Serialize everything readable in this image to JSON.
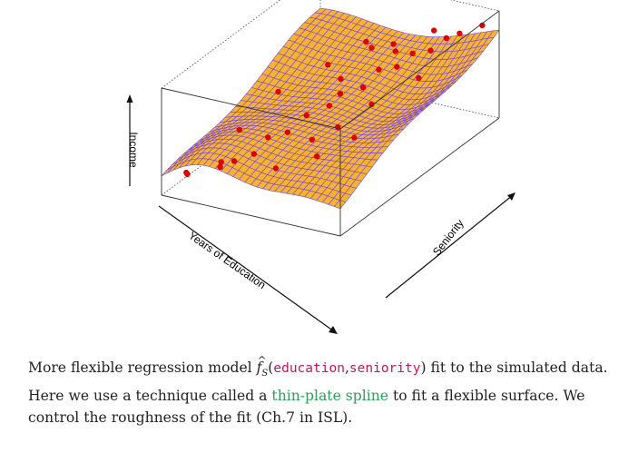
{
  "chart_data": {
    "type": "surface3d",
    "title": "",
    "xlabel": "Years of Education",
    "ylabel": "Seniority",
    "zlabel": "Income",
    "surface_color": "#f7b22f",
    "mesh_color": "#6a3cf0",
    "point_color": "#e00000",
    "grid_size": 30,
    "surface_function": "thin-plate spline fit of income on education and seniority",
    "points": [
      {
        "education": 0.05,
        "seniority": 0.1,
        "income": 0.12
      },
      {
        "education": 0.1,
        "seniority": 0.05,
        "income": 0.18
      },
      {
        "education": 0.15,
        "seniority": 0.2,
        "income": 0.1
      },
      {
        "education": 0.2,
        "seniority": 0.15,
        "income": 0.22
      },
      {
        "education": 0.25,
        "seniority": 0.3,
        "income": 0.15
      },
      {
        "education": 0.3,
        "seniority": 0.12,
        "income": 0.3
      },
      {
        "education": 0.35,
        "seniority": 0.4,
        "income": 0.28
      },
      {
        "education": 0.4,
        "seniority": 0.22,
        "income": 0.45
      },
      {
        "education": 0.45,
        "seniority": 0.55,
        "income": 0.4
      },
      {
        "education": 0.5,
        "seniority": 0.35,
        "income": 0.55
      },
      {
        "education": 0.55,
        "seniority": 0.65,
        "income": 0.5
      },
      {
        "education": 0.6,
        "seniority": 0.45,
        "income": 0.68
      },
      {
        "education": 0.65,
        "seniority": 0.75,
        "income": 0.62
      },
      {
        "education": 0.7,
        "seniority": 0.58,
        "income": 0.8
      },
      {
        "education": 0.75,
        "seniority": 0.85,
        "income": 0.7
      },
      {
        "education": 0.8,
        "seniority": 0.68,
        "income": 0.88
      },
      {
        "education": 0.85,
        "seniority": 0.92,
        "income": 0.82
      },
      {
        "education": 0.9,
        "seniority": 0.78,
        "income": 0.95
      },
      {
        "education": 0.95,
        "seniority": 0.95,
        "income": 0.9
      },
      {
        "education": 0.12,
        "seniority": 0.6,
        "income": 0.35
      },
      {
        "education": 0.22,
        "seniority": 0.8,
        "income": 0.42
      },
      {
        "education": 0.3,
        "seniority": 0.95,
        "income": 0.5
      },
      {
        "education": 0.42,
        "seniority": 0.85,
        "income": 0.6
      },
      {
        "education": 0.55,
        "seniority": 0.1,
        "income": 0.35
      },
      {
        "education": 0.62,
        "seniority": 0.25,
        "income": 0.48
      },
      {
        "education": 0.72,
        "seniority": 0.3,
        "income": 0.58
      },
      {
        "education": 0.82,
        "seniority": 0.4,
        "income": 0.72
      },
      {
        "education": 0.9,
        "seniority": 0.2,
        "income": 0.66
      },
      {
        "education": 0.95,
        "seniority": 0.55,
        "income": 0.85
      },
      {
        "education": 0.08,
        "seniority": 0.4,
        "income": 0.2
      },
      {
        "education": 0.38,
        "seniority": 0.7,
        "income": 0.46
      },
      {
        "education": 0.48,
        "seniority": 0.92,
        "income": 0.58
      },
      {
        "education": 0.68,
        "seniority": 0.95,
        "income": 0.75
      },
      {
        "education": 0.78,
        "seniority": 0.1,
        "income": 0.55
      },
      {
        "education": 0.58,
        "seniority": 0.82,
        "income": 0.66
      }
    ]
  },
  "caption": {
    "prefix": "More flexible regression model ",
    "f_symbol": "f",
    "f_subscript": "S",
    "open_paren": "(",
    "arg1": "education",
    "comma": ",",
    "arg2": "seniority",
    "after_args": ") fit to the simulated data. Here we use a technique called a ",
    "highlight": "thin-plate spline",
    "suffix": " to fit a flexible surface. We control the roughness of the fit (Ch.7 in ISL).",
    "code_color": "#c2185b",
    "highlight_color": "#2e9d5b"
  }
}
